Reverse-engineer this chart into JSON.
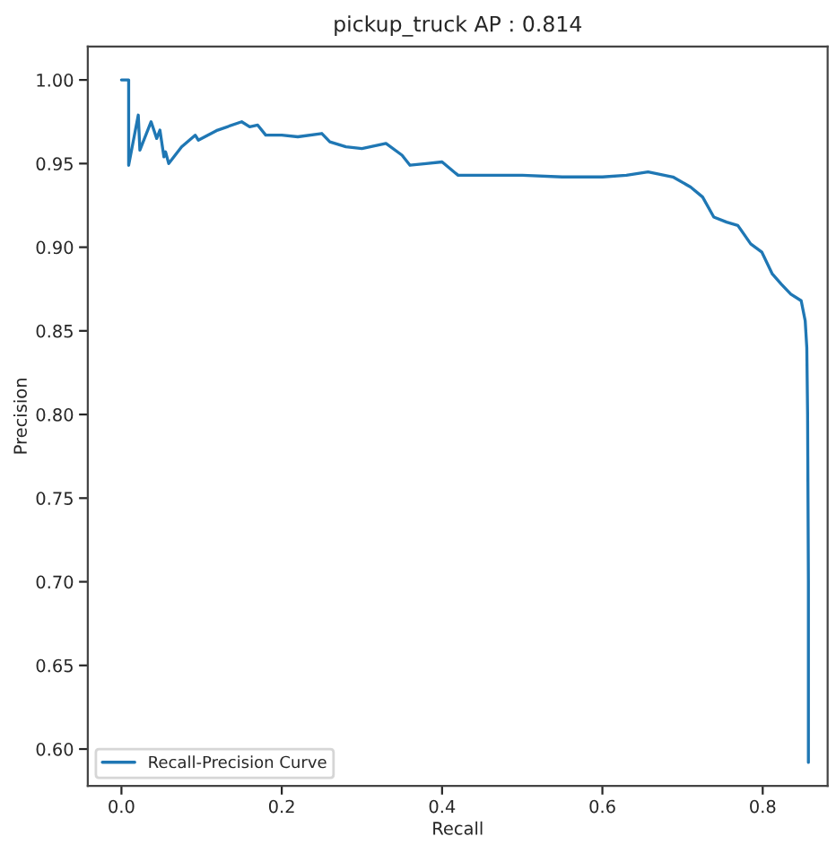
{
  "chart_data": {
    "type": "line",
    "title": "pickup_truck AP : 0.814",
    "xlabel": "Recall",
    "ylabel": "Precision",
    "x": [
      0.0,
      0.009,
      0.009,
      0.021,
      0.023,
      0.037,
      0.044,
      0.048,
      0.053,
      0.055,
      0.059,
      0.075,
      0.092,
      0.096,
      0.12,
      0.15,
      0.16,
      0.17,
      0.18,
      0.2,
      0.22,
      0.25,
      0.26,
      0.28,
      0.3,
      0.33,
      0.35,
      0.36,
      0.38,
      0.4,
      0.42,
      0.45,
      0.5,
      0.55,
      0.6,
      0.63,
      0.657,
      0.688,
      0.71,
      0.725,
      0.739,
      0.755,
      0.769,
      0.785,
      0.799,
      0.812,
      0.823,
      0.835,
      0.848,
      0.853,
      0.855,
      0.856,
      0.857,
      0.857,
      0.857
    ],
    "series": [
      {
        "name": "Recall-Precision Curve",
        "color": "#1f77b4",
        "values": [
          1.0,
          1.0,
          0.949,
          0.979,
          0.958,
          0.975,
          0.965,
          0.97,
          0.954,
          0.957,
          0.95,
          0.96,
          0.967,
          0.964,
          0.97,
          0.975,
          0.972,
          0.973,
          0.967,
          0.967,
          0.966,
          0.968,
          0.963,
          0.96,
          0.959,
          0.962,
          0.955,
          0.949,
          0.95,
          0.951,
          0.943,
          0.943,
          0.943,
          0.942,
          0.942,
          0.943,
          0.945,
          0.942,
          0.936,
          0.93,
          0.918,
          0.915,
          0.913,
          0.902,
          0.897,
          0.884,
          0.878,
          0.872,
          0.868,
          0.856,
          0.84,
          0.8,
          0.7,
          0.65,
          0.592
        ]
      }
    ],
    "xlim": [
      -0.042,
      0.881
    ],
    "ylim": [
      0.578,
      1.02
    ],
    "xticks": [
      {
        "value": 0.0,
        "label": "0.0"
      },
      {
        "value": 0.2,
        "label": "0.2"
      },
      {
        "value": 0.4,
        "label": "0.4"
      },
      {
        "value": 0.6,
        "label": "0.6"
      },
      {
        "value": 0.8,
        "label": "0.8"
      }
    ],
    "yticks": [
      {
        "value": 0.6,
        "label": "0.60"
      },
      {
        "value": 0.65,
        "label": "0.65"
      },
      {
        "value": 0.7,
        "label": "0.70"
      },
      {
        "value": 0.75,
        "label": "0.75"
      },
      {
        "value": 0.8,
        "label": "0.80"
      },
      {
        "value": 0.85,
        "label": "0.85"
      },
      {
        "value": 0.9,
        "label": "0.90"
      },
      {
        "value": 0.95,
        "label": "0.95"
      },
      {
        "value": 1.0,
        "label": "1.00"
      }
    ],
    "grid": false,
    "legend": "bottom left"
  }
}
